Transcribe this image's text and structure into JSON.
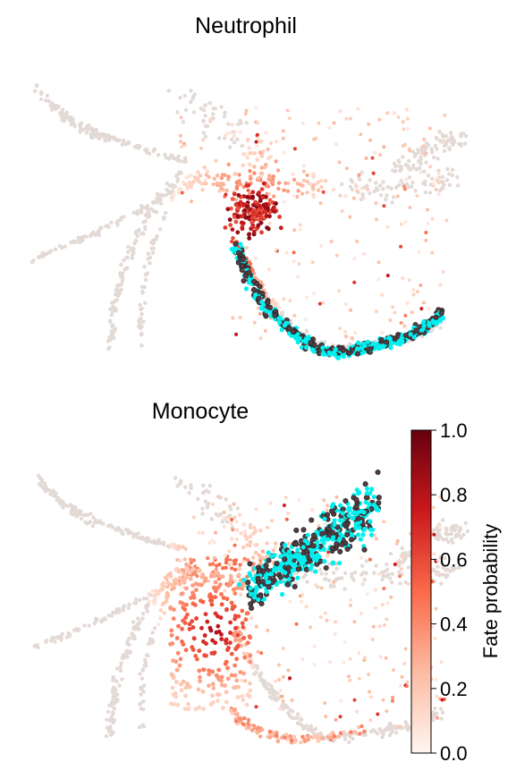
{
  "chart_data": [
    {
      "type": "scatter",
      "title": "Neutrophil",
      "xlabel": "",
      "ylabel": "",
      "grid": false,
      "highlight_color": "#00f0f0",
      "background_color": "#e3d9d5"
    },
    {
      "type": "scatter",
      "title": "Monocyte",
      "xlabel": "",
      "ylabel": "",
      "grid": false,
      "highlight_color": "#00f0f0",
      "background_color": "#e3d9d5"
    }
  ],
  "colorbar": {
    "label": "Fate probability",
    "range": [
      0.0,
      1.0
    ],
    "ticks": [
      "0.0",
      "0.2",
      "0.4",
      "0.6",
      "0.8",
      "1.0"
    ],
    "colormap": [
      "#fff5f0",
      "#fcbba1",
      "#fb6a4a",
      "#cb181d",
      "#67000d"
    ]
  }
}
